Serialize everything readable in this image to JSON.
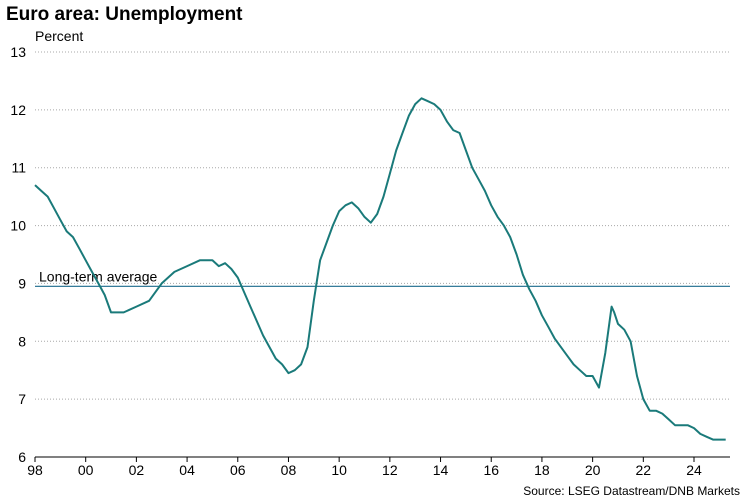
{
  "chart_data": {
    "type": "line",
    "title": "Euro area: Unemployment",
    "ylabel": "Percent",
    "source": "Source: LSEG Datastream/DNB Markets",
    "x_range": [
      1998.0,
      2025.42
    ],
    "ylim": [
      6,
      13
    ],
    "y_ticks": [
      6,
      7,
      8,
      9,
      10,
      11,
      12,
      13
    ],
    "y_tick_labels": [
      "6",
      "7",
      "8",
      "9",
      "10",
      "11",
      "12",
      "13"
    ],
    "x_ticks": [
      1998,
      2000,
      2002,
      2004,
      2006,
      2008,
      2010,
      2012,
      2014,
      2016,
      2018,
      2020,
      2022,
      2024
    ],
    "x_tick_labels": [
      "98",
      "00",
      "02",
      "04",
      "06",
      "08",
      "10",
      "12",
      "14",
      "16",
      "18",
      "20",
      "22",
      "24"
    ],
    "grid": "horizontal dotted",
    "series": [
      {
        "color": "#1a7a7a",
        "x": [
          1998.0,
          1998.25,
          1998.5,
          1998.75,
          1999.0,
          1999.25,
          1999.5,
          1999.75,
          2000.0,
          2000.25,
          2000.5,
          2000.75,
          2001.0,
          2001.5,
          2002.0,
          2002.5,
          2003.0,
          2003.5,
          2004.0,
          2004.5,
          2005.0,
          2005.25,
          2005.5,
          2005.75,
          2006.0,
          2006.5,
          2007.0,
          2007.5,
          2007.75,
          2008.0,
          2008.25,
          2008.5,
          2008.75,
          2009.0,
          2009.25,
          2009.5,
          2009.75,
          2010.0,
          2010.25,
          2010.5,
          2010.75,
          2011.0,
          2011.25,
          2011.5,
          2011.75,
          2012.0,
          2012.25,
          2012.5,
          2012.75,
          2013.0,
          2013.25,
          2013.5,
          2013.75,
          2014.0,
          2014.25,
          2014.5,
          2014.75,
          2015.0,
          2015.25,
          2015.5,
          2015.75,
          2016.0,
          2016.25,
          2016.5,
          2016.75,
          2017.0,
          2017.25,
          2017.5,
          2017.75,
          2018.0,
          2018.25,
          2018.5,
          2018.75,
          2019.0,
          2019.25,
          2019.5,
          2019.75,
          2020.0,
          2020.25,
          2020.5,
          2020.75,
          2020.85,
          2021.0,
          2021.25,
          2021.5,
          2021.75,
          2022.0,
          2022.25,
          2022.5,
          2022.75,
          2023.0,
          2023.25,
          2023.5,
          2023.75,
          2024.0,
          2024.25,
          2024.5,
          2024.75,
          2025.0,
          2025.25
        ],
        "y": [
          10.7,
          10.6,
          10.5,
          10.3,
          10.1,
          9.9,
          9.8,
          9.6,
          9.4,
          9.2,
          9.0,
          8.8,
          8.5,
          8.5,
          8.6,
          8.7,
          9.0,
          9.2,
          9.3,
          9.4,
          9.4,
          9.3,
          9.35,
          9.25,
          9.1,
          8.6,
          8.1,
          7.7,
          7.6,
          7.45,
          7.5,
          7.6,
          7.9,
          8.7,
          9.4,
          9.7,
          10.0,
          10.25,
          10.35,
          10.4,
          10.3,
          10.15,
          10.05,
          10.2,
          10.5,
          10.9,
          11.3,
          11.6,
          11.9,
          12.1,
          12.2,
          12.15,
          12.1,
          12.0,
          11.8,
          11.65,
          11.6,
          11.3,
          11.0,
          10.8,
          10.6,
          10.35,
          10.15,
          10.0,
          9.8,
          9.5,
          9.15,
          8.9,
          8.7,
          8.45,
          8.25,
          8.05,
          7.9,
          7.75,
          7.6,
          7.5,
          7.4,
          7.4,
          7.2,
          7.8,
          8.6,
          8.5,
          8.3,
          8.2,
          8.0,
          7.4,
          7.0,
          6.8,
          6.8,
          6.75,
          6.65,
          6.55,
          6.55,
          6.55,
          6.5,
          6.4,
          6.35,
          6.3,
          6.3,
          6.3
        ]
      }
    ],
    "reference_lines": [
      {
        "label": "Long-term average",
        "y": 8.95,
        "color": "#1a6a8c"
      }
    ]
  }
}
